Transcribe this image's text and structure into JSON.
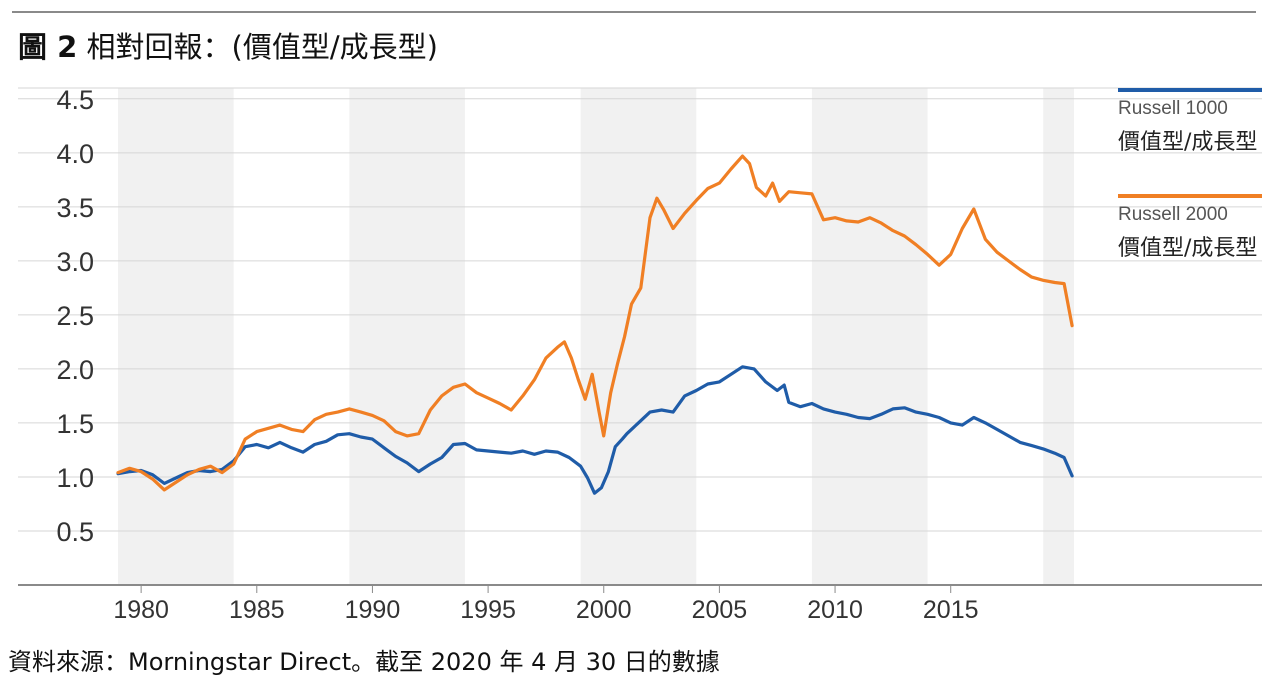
{
  "page": {
    "title_bold": "圖 2",
    "title_rest": " 相對回報：(價值型/成長型)",
    "source": "資料來源：Morningstar Direct。截至 2020 年 4 月 30 日的數據"
  },
  "legend": [
    {
      "line1": "Russell 1000",
      "line2": "價值型/成長型",
      "color": "#1f5ca8"
    },
    {
      "line1": "Russell 2000",
      "line2": "價值型/成長型",
      "color": "#f07f24"
    }
  ],
  "chart_data": {
    "type": "line",
    "title": "圖 2 相對回報：(價值型/成長型)",
    "xlabel": "",
    "ylabel": "",
    "xlim": [
      1979,
      2020.33
    ],
    "ylim": [
      0,
      4.6
    ],
    "yticks": [
      "0.5",
      "1.0",
      "1.5",
      "2.0",
      "2.5",
      "3.0",
      "3.5",
      "4.0",
      "4.5"
    ],
    "xticks": [
      "1980",
      "1985",
      "1990",
      "1995",
      "2000",
      "2005",
      "2010",
      "2015"
    ],
    "shaded_periods": [
      [
        1979,
        1984
      ],
      [
        1989,
        1994
      ],
      [
        1999,
        2004
      ],
      [
        2009,
        2014
      ],
      [
        2019,
        2020.33
      ]
    ],
    "grid": true,
    "legend_position": "right",
    "series": [
      {
        "name": "Russell 1000 價值型/成長型",
        "color": "#1f5ca8",
        "x": [
          1979.0,
          1979.5,
          1980.0,
          1980.5,
          1981.0,
          1981.5,
          1982.0,
          1982.5,
          1983.0,
          1983.5,
          1984.0,
          1984.5,
          1985.0,
          1985.5,
          1986.0,
          1986.5,
          1987.0,
          1987.5,
          1988.0,
          1988.5,
          1989.0,
          1989.5,
          1990.0,
          1990.5,
          1991.0,
          1991.5,
          1992.0,
          1992.5,
          1993.0,
          1993.5,
          1994.0,
          1994.5,
          1995.0,
          1995.5,
          1996.0,
          1996.5,
          1997.0,
          1997.5,
          1998.0,
          1998.5,
          1999.0,
          1999.3,
          1999.6,
          1999.9,
          2000.2,
          2000.5,
          2000.8,
          2001.0,
          2001.5,
          2002.0,
          2002.5,
          2003.0,
          2003.5,
          2004.0,
          2004.5,
          2005.0,
          2005.5,
          2006.0,
          2006.5,
          2007.0,
          2007.5,
          2007.8,
          2008.0,
          2008.5,
          2009.0,
          2009.5,
          2010.0,
          2010.5,
          2011.0,
          2011.5,
          2012.0,
          2012.5,
          2013.0,
          2013.5,
          2014.0,
          2014.5,
          2015.0,
          2015.5,
          2016.0,
          2016.5,
          2017.0,
          2017.5,
          2018.0,
          2018.5,
          2019.0,
          2019.5,
          2019.9,
          2020.25
        ],
        "values": [
          1.03,
          1.05,
          1.06,
          1.02,
          0.94,
          0.99,
          1.04,
          1.06,
          1.05,
          1.07,
          1.15,
          1.28,
          1.3,
          1.27,
          1.32,
          1.27,
          1.23,
          1.3,
          1.33,
          1.39,
          1.4,
          1.37,
          1.35,
          1.27,
          1.19,
          1.13,
          1.05,
          1.12,
          1.18,
          1.3,
          1.31,
          1.25,
          1.24,
          1.23,
          1.22,
          1.24,
          1.21,
          1.24,
          1.23,
          1.18,
          1.1,
          0.99,
          0.85,
          0.9,
          1.05,
          1.28,
          1.35,
          1.4,
          1.5,
          1.6,
          1.62,
          1.6,
          1.75,
          1.8,
          1.86,
          1.88,
          1.95,
          2.02,
          2.0,
          1.88,
          1.8,
          1.85,
          1.69,
          1.65,
          1.68,
          1.63,
          1.6,
          1.58,
          1.55,
          1.54,
          1.58,
          1.63,
          1.64,
          1.6,
          1.58,
          1.55,
          1.5,
          1.48,
          1.55,
          1.5,
          1.44,
          1.38,
          1.32,
          1.29,
          1.26,
          1.22,
          1.18,
          1.01
        ]
      },
      {
        "name": "Russell 2000 價值型/成長型",
        "color": "#f07f24",
        "x": [
          1979.0,
          1979.5,
          1980.0,
          1980.5,
          1981.0,
          1981.5,
          1982.0,
          1982.5,
          1983.0,
          1983.5,
          1984.0,
          1984.5,
          1985.0,
          1985.5,
          1986.0,
          1986.5,
          1987.0,
          1987.5,
          1988.0,
          1988.5,
          1989.0,
          1989.5,
          1990.0,
          1990.5,
          1991.0,
          1991.5,
          1992.0,
          1992.5,
          1993.0,
          1993.5,
          1994.0,
          1994.5,
          1995.0,
          1995.5,
          1996.0,
          1996.5,
          1997.0,
          1997.5,
          1998.0,
          1998.3,
          1998.6,
          1998.9,
          1999.2,
          1999.5,
          1999.8,
          2000.0,
          2000.3,
          2000.6,
          2000.9,
          2001.2,
          2001.6,
          2002.0,
          2002.3,
          2002.6,
          2003.0,
          2003.5,
          2004.0,
          2004.5,
          2005.0,
          2005.5,
          2006.0,
          2006.3,
          2006.6,
          2007.0,
          2007.3,
          2007.6,
          2008.0,
          2008.5,
          2009.0,
          2009.5,
          2010.0,
          2010.5,
          2011.0,
          2011.5,
          2012.0,
          2012.5,
          2013.0,
          2013.5,
          2014.0,
          2014.5,
          2015.0,
          2015.5,
          2016.0,
          2016.5,
          2017.0,
          2017.5,
          2018.0,
          2018.5,
          2019.0,
          2019.5,
          2019.9,
          2020.25
        ],
        "values": [
          1.04,
          1.08,
          1.05,
          0.98,
          0.88,
          0.95,
          1.02,
          1.07,
          1.1,
          1.04,
          1.12,
          1.35,
          1.42,
          1.45,
          1.48,
          1.44,
          1.42,
          1.53,
          1.58,
          1.6,
          1.63,
          1.6,
          1.57,
          1.52,
          1.42,
          1.38,
          1.4,
          1.62,
          1.75,
          1.83,
          1.86,
          1.78,
          1.73,
          1.68,
          1.62,
          1.75,
          1.9,
          2.1,
          2.2,
          2.25,
          2.1,
          1.9,
          1.72,
          1.95,
          1.6,
          1.38,
          1.78,
          2.05,
          2.3,
          2.6,
          2.75,
          3.4,
          3.58,
          3.47,
          3.3,
          3.44,
          3.56,
          3.67,
          3.72,
          3.85,
          3.97,
          3.9,
          3.68,
          3.6,
          3.72,
          3.55,
          3.64,
          3.63,
          3.62,
          3.38,
          3.4,
          3.37,
          3.36,
          3.4,
          3.35,
          3.28,
          3.23,
          3.15,
          3.06,
          2.96,
          3.06,
          3.3,
          3.48,
          3.2,
          3.08,
          3.0,
          2.92,
          2.85,
          2.82,
          2.8,
          2.79,
          2.4
        ]
      }
    ]
  }
}
